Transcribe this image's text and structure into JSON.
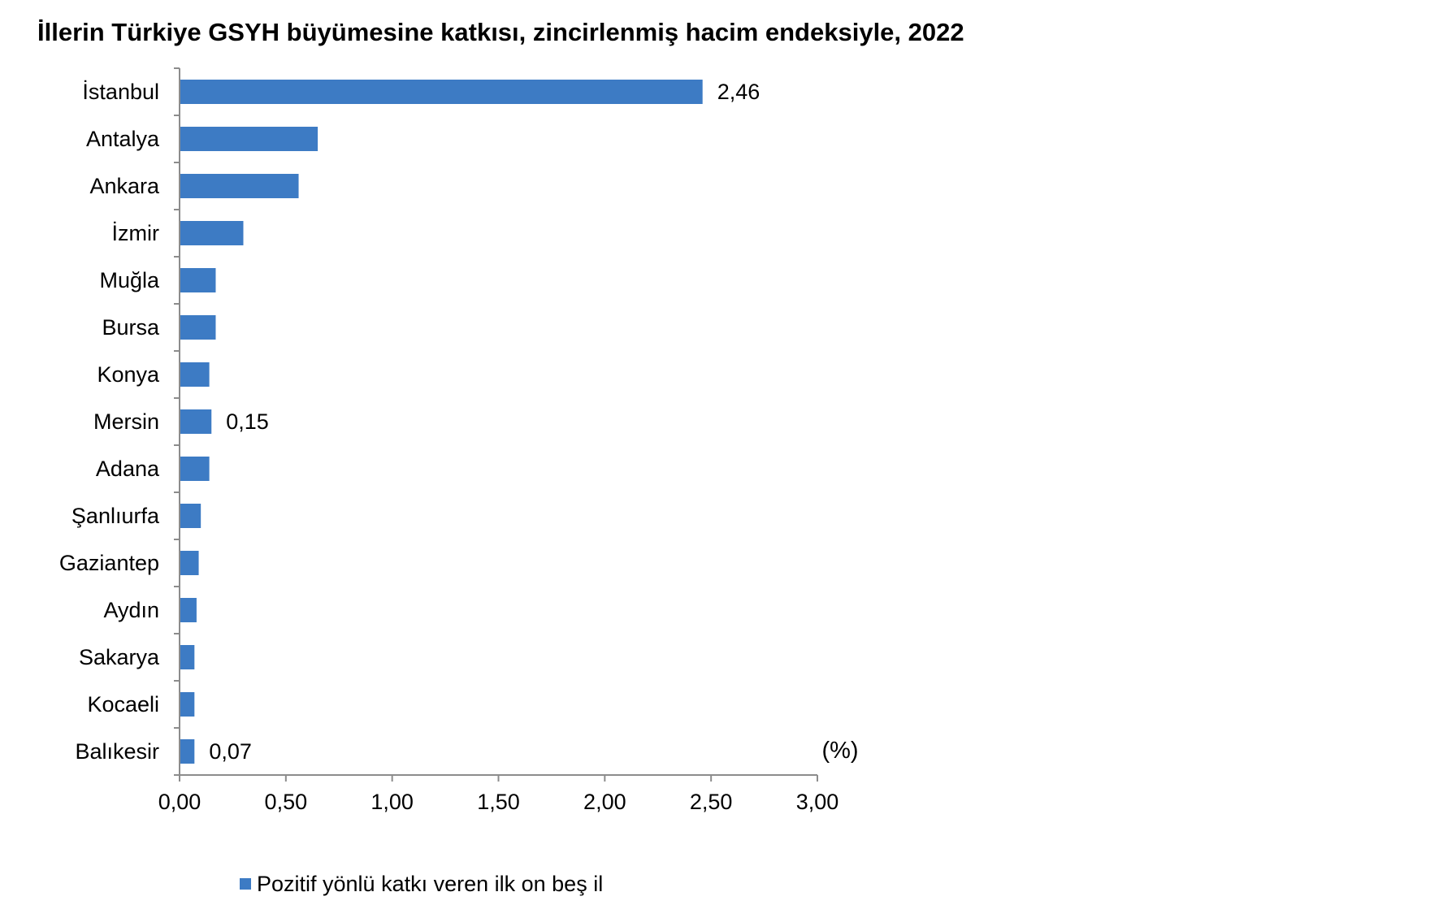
{
  "chart_data": {
    "type": "bar",
    "orientation": "horizontal",
    "title": "İllerin Türkiye GSYH büyümesine katkısı, zincirlenmiş hacim endeksiyle, 2022",
    "unit_label": "(%)",
    "categories": [
      "İstanbul",
      "Antalya",
      "Ankara",
      "İzmir",
      "Muğla",
      "Bursa",
      "Konya",
      "Mersin",
      "Adana",
      "Şanlıurfa",
      "Gaziantep",
      "Aydın",
      "Sakarya",
      "Kocaeli",
      "Balıkesir"
    ],
    "series": [
      {
        "name": "Pozitif yönlü katkı veren ilk on beş il",
        "color": "#3d7bc4",
        "values": [
          2.46,
          0.65,
          0.56,
          0.3,
          0.17,
          0.17,
          0.14,
          0.15,
          0.14,
          0.1,
          0.09,
          0.08,
          0.07,
          0.07,
          0.07
        ]
      }
    ],
    "data_labels": [
      {
        "category": "İstanbul",
        "text": "2,46"
      },
      {
        "category": "Mersin",
        "text": "0,15"
      },
      {
        "category": "Balıkesir",
        "text": "0,07"
      }
    ],
    "xlim": [
      0,
      3.0
    ],
    "x_ticks": [
      0,
      0.5,
      1.0,
      1.5,
      2.0,
      2.5,
      3.0
    ],
    "x_tick_labels": [
      "0,00",
      "0,50",
      "1,00",
      "1,50",
      "2,00",
      "2,50",
      "3,00"
    ],
    "grid": false,
    "legend_position": "bottom-left"
  }
}
